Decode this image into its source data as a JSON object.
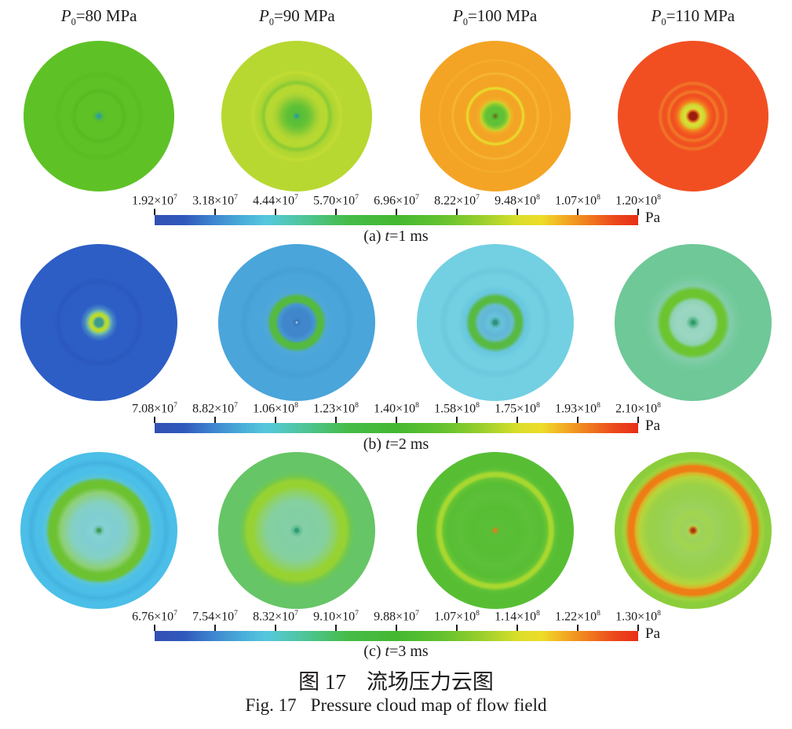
{
  "figure": {
    "caption_zh": {
      "label": "图 17",
      "text": "流场压力云图"
    },
    "caption_en": {
      "label": "Fig. 17",
      "text": "Pressure cloud map of flow field"
    }
  },
  "panel_headers": [
    {
      "var": "P",
      "sub": "0",
      "rest": "=80 MPa"
    },
    {
      "var": "P",
      "sub": "0",
      "rest": "=90 MPa"
    },
    {
      "var": "P",
      "sub": "0",
      "rest": "=100 MPa"
    },
    {
      "var": "P",
      "sub": "0",
      "rest": "=110 MPa"
    }
  ],
  "colorbar_gradient": [
    [
      "#3250b4",
      0
    ],
    [
      "#3058bc",
      6
    ],
    [
      "#3f8cd2",
      13
    ],
    [
      "#49acd8",
      18
    ],
    [
      "#55c8de",
      23
    ],
    [
      "#52c6b2",
      28
    ],
    [
      "#4cc385",
      33
    ],
    [
      "#46bc48",
      40
    ],
    [
      "#44b832",
      50
    ],
    [
      "#66c22e",
      60
    ],
    [
      "#9cd02c",
      68
    ],
    [
      "#d8de2a",
      75
    ],
    [
      "#eedd28",
      80
    ],
    [
      "#f2b224",
      84
    ],
    [
      "#f0791e",
      90
    ],
    [
      "#ec491c",
      95
    ],
    [
      "#e82e18",
      100
    ]
  ],
  "sections": [
    {
      "id": "a",
      "caption": {
        "prefix": "(a) ",
        "var": "t",
        "rest": "=1 ms"
      },
      "unit": "Pa",
      "disk_size": 192,
      "ticks": [
        {
          "base": "1.92×10",
          "exp": "7"
        },
        {
          "base": "3.18×10",
          "exp": "7"
        },
        {
          "base": "4.44×10",
          "exp": "7"
        },
        {
          "base": "5.70×10",
          "exp": "7"
        },
        {
          "base": "6.96×10",
          "exp": "7"
        },
        {
          "base": "8.22×10",
          "exp": "7"
        },
        {
          "base": "9.48×10",
          "exp": "8"
        },
        {
          "base": "1.07×10",
          "exp": "8"
        },
        {
          "base": "1.20×10",
          "exp": "8"
        }
      ],
      "circles": [
        {
          "name": "p0-80",
          "stops": [
            [
              "#2f9e97",
              0
            ],
            [
              "#2f9e97",
              2
            ],
            [
              "#3fae6e",
              3.5
            ],
            [
              "#55bb33",
              6
            ],
            [
              "#5ec226",
              10
            ],
            [
              "#5ec226",
              29
            ],
            [
              "#57ba22",
              33
            ],
            [
              "#5ec226",
              38
            ],
            [
              "#5ec226",
              50
            ],
            [
              "#59bd23",
              55
            ],
            [
              "#5ec226",
              60
            ],
            [
              "#5ec226",
              100
            ]
          ]
        },
        {
          "name": "p0-90",
          "stops": [
            [
              "#2f9e97",
              0
            ],
            [
              "#2f9e97",
              1.8
            ],
            [
              "#45b160",
              3.2
            ],
            [
              "#57bd3a",
              5
            ],
            [
              "#5fc136",
              13
            ],
            [
              "#7cc836",
              20
            ],
            [
              "#a5d233",
              27
            ],
            [
              "#b7d831",
              33
            ],
            [
              "#b7d831",
              40
            ],
            [
              "#88ca34",
              44
            ],
            [
              "#aed532",
              49
            ],
            [
              "#b7d831",
              55
            ],
            [
              "#c2dc33",
              58
            ],
            [
              "#b7d831",
              62
            ],
            [
              "#b7d831",
              100
            ]
          ]
        },
        {
          "name": "p0-100",
          "stops": [
            [
              "#70701f",
              0
            ],
            [
              "#70701f",
              1.5
            ],
            [
              "#58a92e",
              3
            ],
            [
              "#5fc136",
              6
            ],
            [
              "#5fc136",
              12
            ],
            [
              "#8ecb32",
              16
            ],
            [
              "#c8d22c",
              19
            ],
            [
              "#f0b026",
              22
            ],
            [
              "#f4a425",
              26
            ],
            [
              "#f4a425",
              34
            ],
            [
              "#e6e32e",
              37
            ],
            [
              "#f4a425",
              40
            ],
            [
              "#f4a425",
              54
            ],
            [
              "#f6b737",
              56.5
            ],
            [
              "#f4a425",
              59
            ],
            [
              "#f4a425",
              72
            ],
            [
              "#f5ae2e",
              74
            ],
            [
              "#f4a425",
              76
            ],
            [
              "#f4a425",
              100
            ]
          ]
        },
        {
          "name": "p0-110",
          "stops": [
            [
              "#9c1d0c",
              0
            ],
            [
              "#9c1d0c",
              5
            ],
            [
              "#d8641e",
              7
            ],
            [
              "#e0dc30",
              10
            ],
            [
              "#cfe03a",
              13
            ],
            [
              "#d8cc2e",
              16
            ],
            [
              "#f08c1e",
              19
            ],
            [
              "#f4611e",
              23
            ],
            [
              "#f14f22",
              27
            ],
            [
              "#f14f22",
              29
            ],
            [
              "#f07c26",
              32
            ],
            [
              "#f1531f",
              36
            ],
            [
              "#f14f22",
              40
            ],
            [
              "#ef7a28",
              43.5
            ],
            [
              "#f14f22",
              47
            ],
            [
              "#f14f22",
              100
            ]
          ]
        }
      ]
    },
    {
      "id": "b",
      "caption": {
        "prefix": "(b) ",
        "var": "t",
        "rest": "=2 ms"
      },
      "unit": "Pa",
      "disk_size": 200,
      "ticks": [
        {
          "base": "7.08×10",
          "exp": "7"
        },
        {
          "base": "8.82×10",
          "exp": "7"
        },
        {
          "base": "1.06×10",
          "exp": "8"
        },
        {
          "base": "1.23×10",
          "exp": "8"
        },
        {
          "base": "1.40×10",
          "exp": "8"
        },
        {
          "base": "1.58×10",
          "exp": "8"
        },
        {
          "base": "1.75×10",
          "exp": "8"
        },
        {
          "base": "1.93×10",
          "exp": "8"
        },
        {
          "base": "2.10×10",
          "exp": "8"
        }
      ],
      "circles": [
        {
          "name": "p0-80",
          "stops": [
            [
              "#3f9a8e",
              0
            ],
            [
              "#3f9a8e",
              5
            ],
            [
              "#7cc468",
              7
            ],
            [
              "#bada2f",
              8.5
            ],
            [
              "#bada2f",
              11.5
            ],
            [
              "#7ac0a0",
              14
            ],
            [
              "#4888c4",
              18
            ],
            [
              "#2d5ec6",
              24
            ],
            [
              "#2d5ec6",
              46
            ],
            [
              "#2a58be",
              52
            ],
            [
              "#2d5ec6",
              58
            ],
            [
              "#2d5ec6",
              100
            ]
          ]
        },
        {
          "name": "p0-90",
          "stops": [
            [
              "#9ad8dc",
              0
            ],
            [
              "#9ad8dc",
              0.7
            ],
            [
              "#3d72c0",
              2
            ],
            [
              "#3f86cb",
              6
            ],
            [
              "#3f86cb",
              17
            ],
            [
              "#4796d2",
              23
            ],
            [
              "#54ba40",
              27
            ],
            [
              "#54ba40",
              33
            ],
            [
              "#4fa8d6",
              38
            ],
            [
              "#4aa5da",
              46
            ],
            [
              "#4aa5da",
              60
            ],
            [
              "#46a0d6",
              67
            ],
            [
              "#4aa5da",
              74
            ],
            [
              "#4aa5da",
              100
            ]
          ]
        },
        {
          "name": "p0-100",
          "stops": [
            [
              "#2f9080",
              0
            ],
            [
              "#2f9080",
              2.5
            ],
            [
              "#4cb0a8",
              4.5
            ],
            [
              "#68c2dc",
              8
            ],
            [
              "#62b6d8",
              16
            ],
            [
              "#66bcd0",
              22
            ],
            [
              "#58ba42",
              27
            ],
            [
              "#58ba42",
              33
            ],
            [
              "#68c6de",
              38
            ],
            [
              "#72d0e2",
              48
            ],
            [
              "#72d0e2",
              60
            ],
            [
              "#6cc8de",
              66
            ],
            [
              "#72d0e2",
              72
            ],
            [
              "#72d0e2",
              100
            ]
          ]
        },
        {
          "name": "p0-110",
          "stops": [
            [
              "#2f9b6c",
              0
            ],
            [
              "#2f9b6c",
              2.2
            ],
            [
              "#55b489",
              4
            ],
            [
              "#97d5bf",
              9
            ],
            [
              "#9bd6c2",
              20
            ],
            [
              "#90d2b4",
              28
            ],
            [
              "#6cc42f",
              33
            ],
            [
              "#6cc42f",
              41
            ],
            [
              "#82cda9",
              47
            ],
            [
              "#74ca9d",
              56
            ],
            [
              "#6fc897",
              64
            ],
            [
              "#6fc897",
              100
            ]
          ]
        }
      ]
    },
    {
      "id": "c",
      "caption": {
        "prefix": "(c) ",
        "var": "t",
        "rest": "=3 ms"
      },
      "unit": "Pa",
      "disk_size": 200,
      "ticks": [
        {
          "base": "6.76×10",
          "exp": "7"
        },
        {
          "base": "7.54×10",
          "exp": "7"
        },
        {
          "base": "8.32×10",
          "exp": "7"
        },
        {
          "base": "9.10×10",
          "exp": "7"
        },
        {
          "base": "9.88×10",
          "exp": "7"
        },
        {
          "base": "1.07×10",
          "exp": "8"
        },
        {
          "base": "1.14×10",
          "exp": "8"
        },
        {
          "base": "1.22×10",
          "exp": "8"
        },
        {
          "base": "1.30×10",
          "exp": "8"
        }
      ],
      "circles": [
        {
          "name": "p0-80",
          "stops": [
            [
              "#3f9e52",
              0
            ],
            [
              "#3f9e52",
              2.2
            ],
            [
              "#6abfa8",
              4
            ],
            [
              "#86d1d3",
              8
            ],
            [
              "#80ced2",
              20
            ],
            [
              "#84d0c4",
              35
            ],
            [
              "#8ed077",
              48
            ],
            [
              "#6dc231",
              55
            ],
            [
              "#6dc231",
              63
            ],
            [
              "#58c4da",
              68
            ],
            [
              "#4bbfe8",
              74
            ],
            [
              "#4bbfe8",
              80
            ],
            [
              "#44b2e0",
              86
            ],
            [
              "#4bbfe8",
              92
            ],
            [
              "#4bbfe8",
              100
            ]
          ]
        },
        {
          "name": "p0-90",
          "stops": [
            [
              "#2f9b72",
              0
            ],
            [
              "#2f9b72",
              2.2
            ],
            [
              "#5fbd92",
              4
            ],
            [
              "#85cfa6",
              9
            ],
            [
              "#82cfa4",
              22
            ],
            [
              "#86d09e",
              38
            ],
            [
              "#8fd260",
              50
            ],
            [
              "#97d233",
              56
            ],
            [
              "#97d233",
              63
            ],
            [
              "#74c94c",
              68
            ],
            [
              "#66c566",
              74
            ],
            [
              "#66c566",
              100
            ]
          ]
        },
        {
          "name": "p0-100",
          "stops": [
            [
              "#df831d",
              0
            ],
            [
              "#df831d",
              1.8
            ],
            [
              "#8aa428",
              3
            ],
            [
              "#5abf36",
              6
            ],
            [
              "#57be34",
              30
            ],
            [
              "#5dc038",
              45
            ],
            [
              "#57be34",
              60
            ],
            [
              "#68c434",
              66
            ],
            [
              "#a8d830",
              69.5
            ],
            [
              "#a8d830",
              73
            ],
            [
              "#5fc136",
              77
            ],
            [
              "#57be34",
              82
            ],
            [
              "#57be34",
              100
            ]
          ]
        },
        {
          "name": "p0-110",
          "stops": [
            [
              "#a63a12",
              0
            ],
            [
              "#a63a12",
              2.4
            ],
            [
              "#cc7c22",
              4
            ],
            [
              "#aad453",
              6.5
            ],
            [
              "#9cd25c",
              12
            ],
            [
              "#a2d54e",
              22
            ],
            [
              "#9cd25c",
              30
            ],
            [
              "#98d14e",
              45
            ],
            [
              "#9ad148",
              58
            ],
            [
              "#b4d63c",
              68
            ],
            [
              "#dcb428",
              73
            ],
            [
              "#ee7d15",
              76
            ],
            [
              "#ee7d15",
              82
            ],
            [
              "#c2b328",
              84.5
            ],
            [
              "#9ed43e",
              88
            ],
            [
              "#8ccd3b",
              93
            ],
            [
              "#8ccd3b",
              100
            ]
          ]
        }
      ]
    }
  ],
  "chart_data": [
    {
      "type": "heatmap",
      "title": "图 17 流场压力云图 / Fig. 17 Pressure cloud map of flow field",
      "subtitle": "(a) t=1 ms",
      "panel_variable": "P0 (MPa)",
      "panels": [
        80,
        90,
        100,
        110
      ],
      "colorbar_unit": "Pa",
      "colorbar_tick_labels": [
        "1.92×10⁷",
        "3.18×10⁷",
        "4.44×10⁷",
        "5.70×10⁷",
        "6.96×10⁷",
        "8.22×10⁷",
        "9.48×10⁸",
        "1.07×10⁸",
        "1.20×10⁸"
      ],
      "colorbar_tick_values": [
        19200000,
        31800000,
        44400000,
        57000000,
        69600000,
        82200000,
        948000000,
        107000000,
        120000000
      ],
      "colormap": "rainbow (blue→cyan→green→yellow→orange→red)",
      "legend_position": "below panels"
    },
    {
      "type": "heatmap",
      "subtitle": "(b) t=2 ms",
      "panel_variable": "P0 (MPa)",
      "panels": [
        80,
        90,
        100,
        110
      ],
      "colorbar_unit": "Pa",
      "colorbar_tick_labels": [
        "7.08×10⁷",
        "8.82×10⁷",
        "1.06×10⁸",
        "1.23×10⁸",
        "1.40×10⁸",
        "1.58×10⁸",
        "1.75×10⁸",
        "1.93×10⁸",
        "2.10×10⁸"
      ],
      "colorbar_tick_values": [
        70800000,
        88200000,
        106000000,
        123000000,
        140000000,
        158000000,
        175000000,
        193000000,
        210000000
      ],
      "colormap": "rainbow (blue→cyan→green→yellow→orange→red)",
      "legend_position": "below panels"
    },
    {
      "type": "heatmap",
      "subtitle": "(c) t=3 ms",
      "panel_variable": "P0 (MPa)",
      "panels": [
        80,
        90,
        100,
        110
      ],
      "colorbar_unit": "Pa",
      "colorbar_tick_labels": [
        "6.76×10⁷",
        "7.54×10⁷",
        "8.32×10⁷",
        "9.10×10⁷",
        "9.88×10⁷",
        "1.07×10⁸",
        "1.14×10⁸",
        "1.22×10⁸",
        "1.30×10⁸"
      ],
      "colorbar_tick_values": [
        67600000,
        75400000,
        83200000,
        91000000,
        98800000,
        107000000,
        114000000,
        122000000,
        130000000
      ],
      "colormap": "rainbow (blue→cyan→green→yellow→orange→red)",
      "legend_position": "below panels"
    }
  ]
}
